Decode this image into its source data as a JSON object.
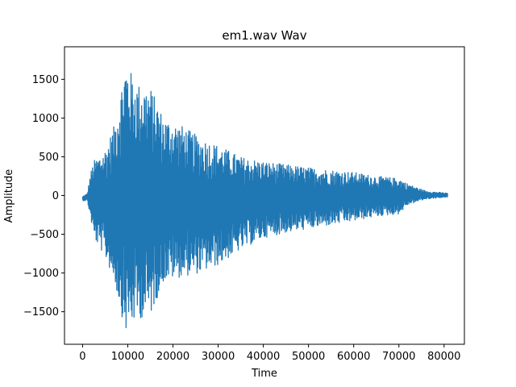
{
  "chart_data": {
    "type": "line",
    "title": "em1.wav Wav",
    "xlabel": "Time",
    "ylabel": "Amplitude",
    "xlim": [
      -4000,
      84500
    ],
    "ylim": [
      -1920,
      1920
    ],
    "grid": false,
    "line_color": "#1f77b4",
    "x_ticks": [
      0,
      10000,
      20000,
      30000,
      40000,
      50000,
      60000,
      70000,
      80000
    ],
    "x_tick_labels": [
      "0",
      "10000",
      "20000",
      "30000",
      "40000",
      "50000",
      "60000",
      "70000",
      "80000"
    ],
    "y_ticks": [
      -1500,
      -1000,
      -500,
      0,
      500,
      1000,
      1500
    ],
    "y_tick_labels": [
      "−1500",
      "−1000",
      "−500",
      "0",
      "500",
      "1000",
      "1500"
    ],
    "series": [
      {
        "x": [
          0,
          1000,
          1800,
          2500,
          3500,
          5000,
          7000,
          9500,
          12000,
          15000,
          18000,
          22000,
          26000,
          30000,
          35000,
          40000,
          45000,
          50000,
          55000,
          60000,
          65000,
          70000,
          72000,
          74000,
          76000,
          78000,
          80000,
          80800
        ],
        "max": [
          -10,
          20,
          300,
          450,
          500,
          600,
          900,
          1730,
          1450,
          1400,
          1000,
          900,
          750,
          650,
          500,
          440,
          400,
          360,
          330,
          300,
          250,
          220,
          150,
          100,
          60,
          45,
          35,
          30
        ],
        "min": [
          -70,
          -60,
          -300,
          -550,
          -650,
          -800,
          -1100,
          -1770,
          -1600,
          -1550,
          -1100,
          -1050,
          -1000,
          -900,
          -700,
          -550,
          -480,
          -430,
          -380,
          -330,
          -270,
          -240,
          -120,
          -80,
          -45,
          -35,
          -25,
          -20
        ]
      }
    ]
  }
}
